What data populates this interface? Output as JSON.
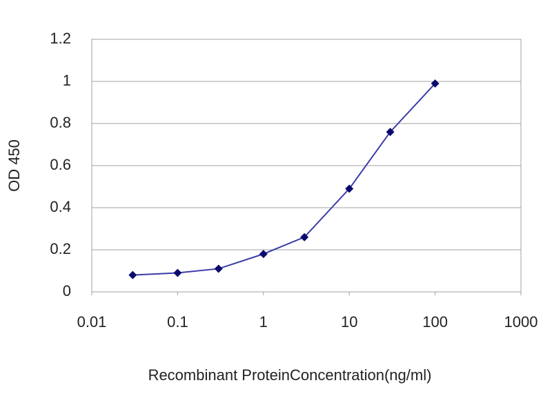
{
  "chart_data": {
    "type": "line",
    "x_label": "Recombinant ProteinConcentration(ng/ml)",
    "y_label": "OD 450",
    "x": [
      0.03,
      0.1,
      0.3,
      1,
      3,
      10,
      30,
      100
    ],
    "series": [
      {
        "color": "#3a3aa8",
        "marker_color": "#0a0a6e",
        "values": [
          0.08,
          0.09,
          0.11,
          0.18,
          0.26,
          0.49,
          0.76,
          0.99
        ]
      }
    ],
    "xscale": "log",
    "xlim": [
      0.01,
      1000
    ],
    "xticks": [
      0.01,
      0.1,
      1,
      10,
      100,
      1000
    ],
    "ylim": [
      0,
      1.2
    ],
    "yticks": [
      0,
      0.2,
      0.4,
      0.6,
      0.8,
      1,
      1.2
    ],
    "grid": true
  }
}
